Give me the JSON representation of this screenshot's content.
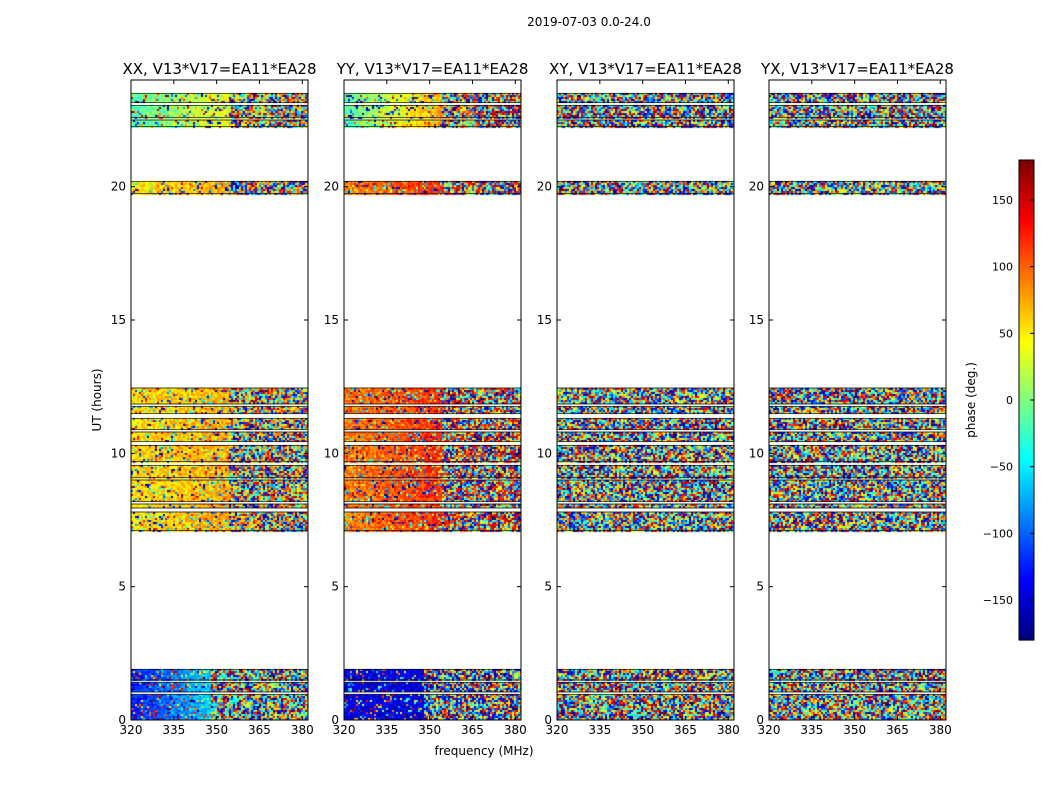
{
  "chart_data": {
    "type": "heatmap",
    "title": "2019-07-03 0.0-24.0",
    "xlabel": "frequency (MHz)",
    "ylabel": "UT (hours)",
    "xlim": [
      320,
      382
    ],
    "ylim": [
      0,
      24
    ],
    "x_ticks": [
      {
        "value": 320,
        "label": "320"
      },
      {
        "value": 335,
        "label": "335"
      },
      {
        "value": 350,
        "label": "350"
      },
      {
        "value": 365,
        "label": "365"
      },
      {
        "value": 380,
        "label": "380"
      }
    ],
    "y_ticks": [
      {
        "value": 0,
        "label": "0"
      },
      {
        "value": 5,
        "label": "5"
      },
      {
        "value": 10,
        "label": "10"
      },
      {
        "value": 15,
        "label": "15"
      },
      {
        "value": 20,
        "label": "20"
      }
    ],
    "panels": [
      {
        "title": "XX, V13*V17=EA11*EA28",
        "pattern": "coherent"
      },
      {
        "title": "YY, V13*V17=EA11*EA28",
        "pattern": "coherent-red"
      },
      {
        "title": "XY, V13*V17=EA11*EA28",
        "pattern": "noise"
      },
      {
        "title": "YX, V13*V17=EA11*EA28",
        "pattern": "noise"
      }
    ],
    "time_blocks_hours": [
      [
        0.0,
        0.95
      ],
      [
        1.05,
        1.4
      ],
      [
        1.5,
        1.9
      ],
      [
        7.1,
        7.8
      ],
      [
        7.95,
        8.1
      ],
      [
        8.2,
        9.0
      ],
      [
        9.1,
        9.55
      ],
      [
        9.7,
        10.3
      ],
      [
        10.45,
        10.8
      ],
      [
        10.9,
        11.3
      ],
      [
        11.5,
        11.75
      ],
      [
        11.85,
        12.45
      ],
      [
        19.75,
        20.2
      ],
      [
        22.25,
        22.5
      ],
      [
        22.6,
        23.05
      ],
      [
        23.15,
        23.5
      ]
    ],
    "colorbar": {
      "label": "phase (deg.)",
      "range": [
        -180,
        180
      ],
      "ticks": [
        {
          "value": -150,
          "label": "−150"
        },
        {
          "value": -100,
          "label": "−100"
        },
        {
          "value": -50,
          "label": "−50"
        },
        {
          "value": 0,
          "label": "0"
        },
        {
          "value": 50,
          "label": "50"
        },
        {
          "value": 100,
          "label": "100"
        },
        {
          "value": 150,
          "label": "150"
        }
      ],
      "colormap": "jet"
    }
  }
}
